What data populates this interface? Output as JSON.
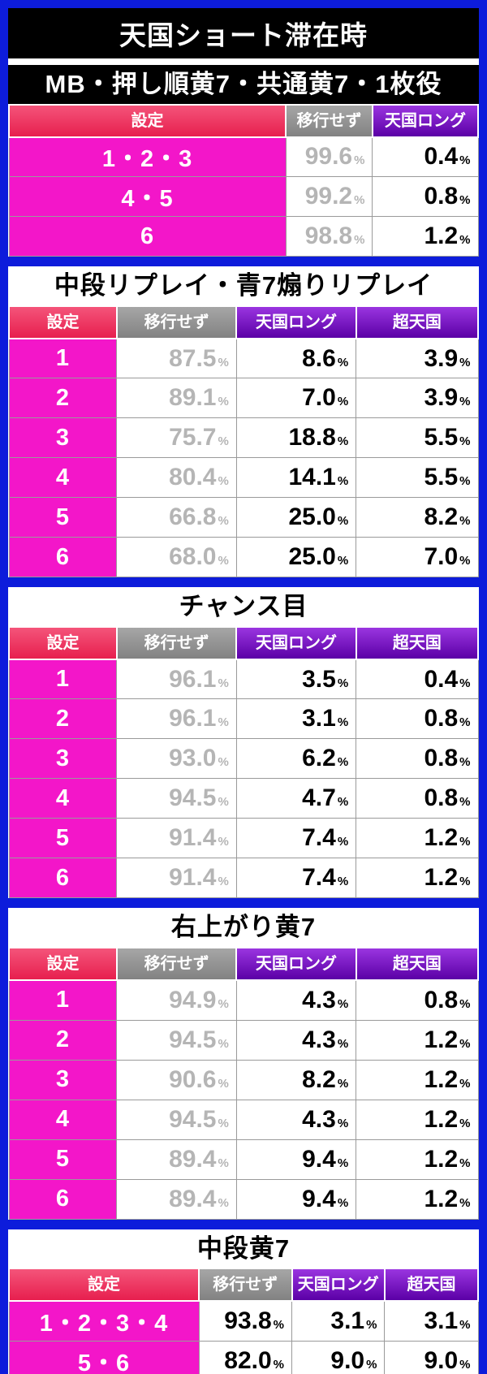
{
  "header": {
    "title": "天国ショート滞在時"
  },
  "unit": "%",
  "colors": {
    "frame_blue": "#0d1cdb",
    "setting_red": "#e71f4e",
    "setting_red_light": "#f4547a",
    "setting_magenta": "#f316c9",
    "header_gray": "#828282",
    "header_purple": "#5b00a6",
    "header_purple_light": "#9a35e0",
    "value_gray": "#b5b5b5"
  },
  "chart_data": [
    {
      "type": "table",
      "title": "MB・押し順黄7・共通黄7・1枚役",
      "title_theme": "black",
      "setting_header": "設定",
      "setting_width": "59%",
      "columns": [
        {
          "label": "移行せず",
          "theme": "gray",
          "value_color": "gray",
          "width": "18.5%"
        },
        {
          "label": "天国ロング",
          "theme": "purple",
          "value_color": "black",
          "width": "22.5%"
        }
      ],
      "rows": [
        {
          "setting": "1・2・3",
          "values": [
            "99.6",
            "0.4"
          ]
        },
        {
          "setting": "4・5",
          "values": [
            "99.2",
            "0.8"
          ]
        },
        {
          "setting": "6",
          "values": [
            "98.8",
            "1.2"
          ]
        }
      ]
    },
    {
      "type": "table",
      "title": "中段リプレイ・青7煽りリプレイ",
      "title_theme": "white",
      "setting_header": "設定",
      "setting_width": "23%",
      "columns": [
        {
          "label": "移行せず",
          "theme": "gray",
          "value_color": "gray",
          "width": "25.5%"
        },
        {
          "label": "天国ロング",
          "theme": "purple",
          "value_color": "black",
          "width": "25.5%"
        },
        {
          "label": "超天国",
          "theme": "purple",
          "value_color": "black",
          "width": "26%"
        }
      ],
      "rows": [
        {
          "setting": "1",
          "values": [
            "87.5",
            "8.6",
            "3.9"
          ]
        },
        {
          "setting": "2",
          "values": [
            "89.1",
            "7.0",
            "3.9"
          ]
        },
        {
          "setting": "3",
          "values": [
            "75.7",
            "18.8",
            "5.5"
          ]
        },
        {
          "setting": "4",
          "values": [
            "80.4",
            "14.1",
            "5.5"
          ]
        },
        {
          "setting": "5",
          "values": [
            "66.8",
            "25.0",
            "8.2"
          ]
        },
        {
          "setting": "6",
          "values": [
            "68.0",
            "25.0",
            "7.0"
          ]
        }
      ]
    },
    {
      "type": "table",
      "title": "チャンス目",
      "title_theme": "white",
      "setting_header": "設定",
      "setting_width": "23%",
      "columns": [
        {
          "label": "移行せず",
          "theme": "gray",
          "value_color": "gray",
          "width": "25.5%"
        },
        {
          "label": "天国ロング",
          "theme": "purple",
          "value_color": "black",
          "width": "25.5%"
        },
        {
          "label": "超天国",
          "theme": "purple",
          "value_color": "black",
          "width": "26%"
        }
      ],
      "rows": [
        {
          "setting": "1",
          "values": [
            "96.1",
            "3.5",
            "0.4"
          ]
        },
        {
          "setting": "2",
          "values": [
            "96.1",
            "3.1",
            "0.8"
          ]
        },
        {
          "setting": "3",
          "values": [
            "93.0",
            "6.2",
            "0.8"
          ]
        },
        {
          "setting": "4",
          "values": [
            "94.5",
            "4.7",
            "0.8"
          ]
        },
        {
          "setting": "5",
          "values": [
            "91.4",
            "7.4",
            "1.2"
          ]
        },
        {
          "setting": "6",
          "values": [
            "91.4",
            "7.4",
            "1.2"
          ]
        }
      ]
    },
    {
      "type": "table",
      "title": "右上がり黄7",
      "title_theme": "white",
      "setting_header": "設定",
      "setting_width": "23%",
      "columns": [
        {
          "label": "移行せず",
          "theme": "gray",
          "value_color": "gray",
          "width": "25.5%"
        },
        {
          "label": "天国ロング",
          "theme": "purple",
          "value_color": "black",
          "width": "25.5%"
        },
        {
          "label": "超天国",
          "theme": "purple",
          "value_color": "black",
          "width": "26%"
        }
      ],
      "rows": [
        {
          "setting": "1",
          "values": [
            "94.9",
            "4.3",
            "0.8"
          ]
        },
        {
          "setting": "2",
          "values": [
            "94.5",
            "4.3",
            "1.2"
          ]
        },
        {
          "setting": "3",
          "values": [
            "90.6",
            "8.2",
            "1.2"
          ]
        },
        {
          "setting": "4",
          "values": [
            "94.5",
            "4.3",
            "1.2"
          ]
        },
        {
          "setting": "5",
          "values": [
            "89.4",
            "9.4",
            "1.2"
          ]
        },
        {
          "setting": "6",
          "values": [
            "89.4",
            "9.4",
            "1.2"
          ]
        }
      ]
    },
    {
      "type": "table",
      "title": "中段黄7",
      "title_theme": "white",
      "setting_header": "設定",
      "setting_width": "40.5%",
      "columns": [
        {
          "label": "移行せず",
          "theme": "gray",
          "value_color": "black",
          "width": "19.8%"
        },
        {
          "label": "天国ロング",
          "theme": "purple",
          "value_color": "black",
          "width": "19.8%"
        },
        {
          "label": "超天国",
          "theme": "purple",
          "value_color": "black",
          "width": "19.9%"
        }
      ],
      "rows": [
        {
          "setting": "1・2・3・4",
          "values": [
            "93.8",
            "3.1",
            "3.1"
          ]
        },
        {
          "setting": "5・6",
          "values": [
            "82.0",
            "9.0",
            "9.0"
          ]
        }
      ]
    }
  ]
}
